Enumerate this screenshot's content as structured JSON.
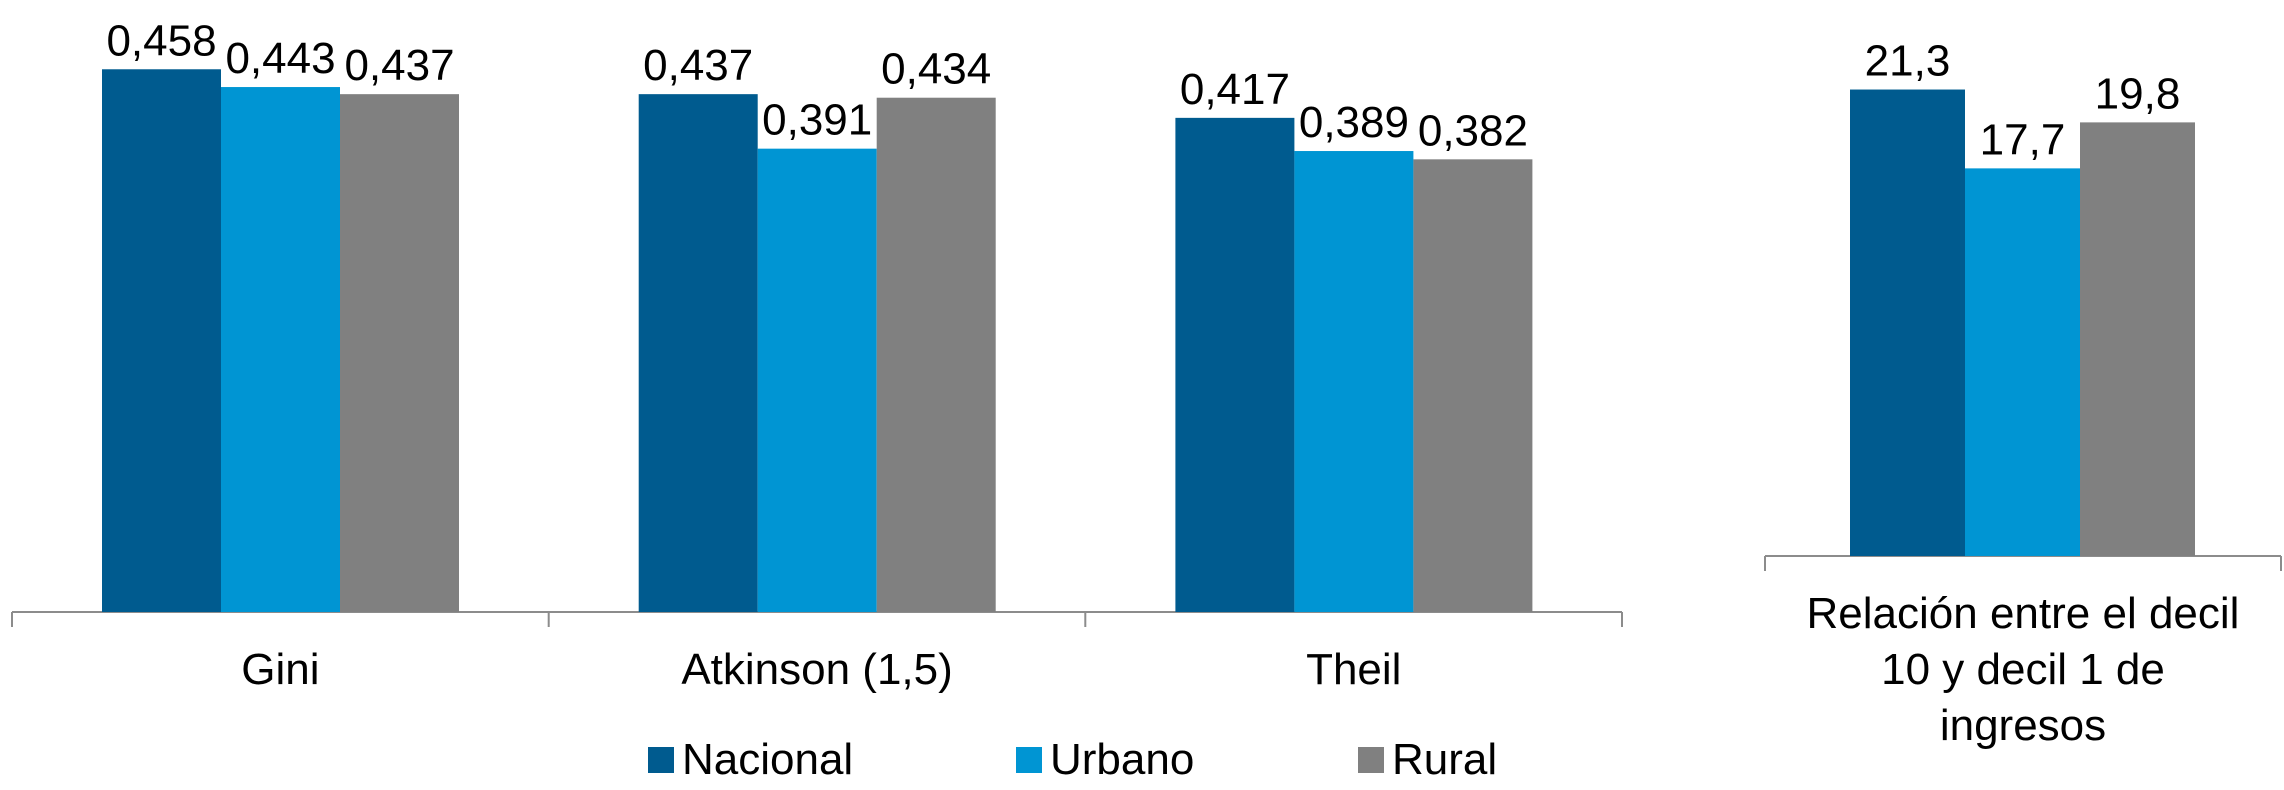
{
  "chart_data": [
    {
      "type": "bar",
      "categories": [
        "Gini",
        "Atkinson (1,5)",
        "Theil"
      ],
      "series": [
        {
          "name": "Nacional",
          "values": [
            0.458,
            0.437,
            0.417
          ],
          "labels": [
            "0,458",
            "0,437",
            "0,417"
          ]
        },
        {
          "name": "Urbano",
          "values": [
            0.443,
            0.391,
            0.389
          ],
          "labels": [
            "0,443",
            "0,391",
            "0,389"
          ]
        },
        {
          "name": "Rural",
          "values": [
            0.437,
            0.434,
            0.382
          ],
          "labels": [
            "0,437",
            "0,434",
            "0,382"
          ]
        }
      ],
      "ylim": [
        0,
        0.5
      ],
      "grid": false,
      "legend": "bottom"
    },
    {
      "type": "bar",
      "categories": [
        "Relación entre el decil 10 y  decil 1 de ingresos"
      ],
      "category_lines": [
        "Relación entre el decil",
        "10 y  decil 1 de",
        "ingresos"
      ],
      "series": [
        {
          "name": "Nacional",
          "values": [
            21.3
          ],
          "labels": [
            "21,3"
          ]
        },
        {
          "name": "Urbano",
          "values": [
            17.7
          ],
          "labels": [
            "17,7"
          ]
        },
        {
          "name": "Rural",
          "values": [
            19.8
          ],
          "labels": [
            "19,8"
          ]
        }
      ],
      "ylim": [
        0,
        25
      ],
      "grid": false
    }
  ],
  "legend": {
    "items": [
      {
        "label": "Nacional",
        "color": "#005B8F"
      },
      {
        "label": "Urbano",
        "color": "#0095D3"
      },
      {
        "label": "Rural",
        "color": "#808080"
      }
    ]
  },
  "colors": {
    "nacional": "#005B8F",
    "urbano": "#0095D3",
    "rural": "#808080",
    "axis": "#8C8C8C"
  }
}
